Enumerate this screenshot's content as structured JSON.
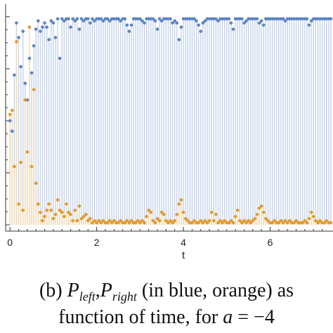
{
  "figure": {
    "caption": {
      "prefix": "(b)",
      "p_symbol": "P",
      "left_sub": "left",
      "right_sub": "right",
      "mid_text": "(in blue, orange) as",
      "line2_text": "function of time, for",
      "a_symbol": "a",
      "a_value": "= −4"
    }
  },
  "chart_data": {
    "type": "scatter",
    "title": "",
    "xlabel": "t",
    "ylabel": "",
    "xlim": [
      -0.1,
      7.45
    ],
    "ylim": [
      -0.02,
      1.06
    ],
    "x_ticks": [
      0,
      2,
      4,
      6
    ],
    "x_tick_labels": [
      "0",
      "2",
      "4",
      "6"
    ],
    "grid": false,
    "drop_lines": true,
    "colors": {
      "blue": "#5b84c4",
      "orange": "#e39a2b",
      "blue_stem": "#c4d3ea",
      "orange_stem": "#f2d9ae",
      "axis": "#333333"
    },
    "series": [
      {
        "name": "P_left",
        "color": "#5b84c4",
        "x": [
          0.0,
          0.05,
          0.1,
          0.15,
          0.2,
          0.25,
          0.3,
          0.35,
          0.4,
          0.45,
          0.5,
          0.55,
          0.6,
          0.65,
          0.7,
          0.75,
          0.8,
          0.85,
          0.9,
          0.95,
          1.0,
          1.05,
          1.1,
          1.15,
          1.2,
          1.25,
          1.3,
          1.35,
          1.4,
          1.45,
          1.5,
          1.55,
          1.6,
          1.65,
          1.7,
          1.75,
          1.8,
          1.85,
          1.9,
          1.95,
          2.0,
          2.05,
          2.1,
          2.15,
          2.2,
          2.25,
          2.3,
          2.35,
          2.4,
          2.45,
          2.5,
          2.55,
          2.6,
          2.65,
          2.7,
          2.75,
          2.8,
          2.85,
          2.9,
          2.95,
          3.0,
          3.05,
          3.1,
          3.15,
          3.2,
          3.25,
          3.3,
          3.35,
          3.4,
          3.45,
          3.5,
          3.55,
          3.6,
          3.65,
          3.7,
          3.75,
          3.8,
          3.85,
          3.9,
          3.95,
          4.0,
          4.05,
          4.1,
          4.15,
          4.2,
          4.25,
          4.3,
          4.35,
          4.4,
          4.45,
          4.5,
          4.55,
          4.6,
          4.65,
          4.7,
          4.75,
          4.8,
          4.85,
          4.9,
          4.95,
          5.0,
          5.05,
          5.1,
          5.15,
          5.2,
          5.25,
          5.3,
          5.35,
          5.4,
          5.45,
          5.5,
          5.55,
          5.6,
          5.65,
          5.7,
          5.75,
          5.8,
          5.85,
          5.9,
          5.95,
          6.0,
          6.05,
          6.1,
          6.15,
          6.2,
          6.25,
          6.3,
          6.35,
          6.4,
          6.45,
          6.5,
          6.55,
          6.6,
          6.65,
          6.7,
          6.75,
          6.8,
          6.85,
          6.9,
          6.95,
          7.0,
          7.05,
          7.1,
          7.15,
          7.2,
          7.25,
          7.3,
          7.35,
          7.4
        ],
        "y": [
          0.5,
          0.45,
          0.72,
          0.97,
          0.9,
          0.76,
          0.93,
          0.68,
          0.6,
          0.8,
          0.73,
          0.86,
          0.94,
          0.98,
          0.93,
          0.95,
          0.97,
          0.95,
          0.89,
          0.98,
          0.97,
          0.9,
          0.99,
          0.8,
          0.99,
          0.98,
          0.99,
          0.99,
          0.95,
          0.99,
          0.98,
          0.99,
          0.94,
          0.99,
          0.98,
          0.99,
          0.99,
          0.97,
          0.99,
          0.98,
          0.99,
          0.99,
          0.99,
          0.98,
          0.99,
          0.99,
          0.98,
          0.99,
          0.99,
          0.99,
          0.99,
          0.98,
          0.99,
          0.99,
          0.96,
          0.93,
          0.96,
          0.99,
          0.99,
          0.99,
          0.99,
          0.98,
          0.97,
          0.99,
          0.99,
          0.99,
          0.99,
          0.98,
          0.94,
          0.99,
          0.98,
          0.99,
          0.99,
          0.99,
          0.99,
          0.97,
          0.98,
          0.97,
          0.89,
          0.95,
          0.99,
          0.99,
          0.99,
          0.99,
          0.99,
          0.99,
          0.98,
          0.96,
          0.93,
          0.97,
          0.98,
          0.99,
          0.99,
          0.99,
          0.99,
          0.99,
          0.98,
          0.99,
          0.99,
          0.99,
          0.99,
          0.99,
          0.97,
          0.94,
          0.99,
          0.99,
          0.99,
          0.99,
          0.97,
          0.98,
          0.99,
          0.99,
          0.99,
          0.99,
          0.99,
          0.97,
          0.98,
          0.96,
          0.99,
          0.99,
          0.99,
          0.99,
          0.99,
          0.99,
          0.99,
          0.99,
          0.99,
          0.98,
          0.99,
          0.99,
          0.99,
          0.99,
          0.99,
          0.99,
          0.99,
          0.99,
          0.99,
          0.99,
          0.96,
          0.98,
          0.99,
          0.99,
          0.99,
          0.99,
          0.99,
          0.99,
          0.99,
          0.99,
          0.99
        ]
      },
      {
        "name": "P_right",
        "color": "#e39a2b",
        "x": [
          0.0,
          0.05,
          0.1,
          0.15,
          0.2,
          0.25,
          0.3,
          0.35,
          0.4,
          0.45,
          0.5,
          0.55,
          0.6,
          0.65,
          0.7,
          0.75,
          0.8,
          0.85,
          0.9,
          0.95,
          1.0,
          1.05,
          1.1,
          1.15,
          1.2,
          1.25,
          1.3,
          1.35,
          1.4,
          1.45,
          1.5,
          1.55,
          1.6,
          1.65,
          1.7,
          1.75,
          1.8,
          1.85,
          1.9,
          1.95,
          2.0,
          2.05,
          2.1,
          2.15,
          2.2,
          2.25,
          2.3,
          2.35,
          2.4,
          2.45,
          2.5,
          2.55,
          2.6,
          2.65,
          2.7,
          2.75,
          2.8,
          2.85,
          2.9,
          2.95,
          3.0,
          3.05,
          3.1,
          3.15,
          3.2,
          3.25,
          3.3,
          3.35,
          3.4,
          3.45,
          3.5,
          3.55,
          3.6,
          3.65,
          3.7,
          3.75,
          3.8,
          3.85,
          3.9,
          3.95,
          4.0,
          4.05,
          4.1,
          4.15,
          4.2,
          4.25,
          4.3,
          4.35,
          4.4,
          4.45,
          4.5,
          4.55,
          4.6,
          4.65,
          4.7,
          4.75,
          4.8,
          4.85,
          4.9,
          4.95,
          5.0,
          5.05,
          5.1,
          5.15,
          5.2,
          5.25,
          5.3,
          5.35,
          5.4,
          5.45,
          5.5,
          5.55,
          5.6,
          5.65,
          5.7,
          5.75,
          5.8,
          5.85,
          5.9,
          5.95,
          6.0,
          6.05,
          6.1,
          6.15,
          6.2,
          6.25,
          6.3,
          6.35,
          6.4,
          6.45,
          6.5,
          6.55,
          6.6,
          6.65,
          6.7,
          6.75,
          6.8,
          6.85,
          6.9,
          6.95,
          7.0,
          7.05,
          7.1,
          7.15,
          7.2,
          7.25,
          7.3,
          7.35,
          7.4
        ],
        "y": [
          0.53,
          0.55,
          0.28,
          0.88,
          0.1,
          0.3,
          0.07,
          0.6,
          0.35,
          0.95,
          0.28,
          0.65,
          0.2,
          0.1,
          0.06,
          0.02,
          0.04,
          0.07,
          0.1,
          0.07,
          0.03,
          0.05,
          0.12,
          0.07,
          0.06,
          0.04,
          0.1,
          0.06,
          0.05,
          0.02,
          0.07,
          0.02,
          0.09,
          0.03,
          0.04,
          0.05,
          0.02,
          0.03,
          0.01,
          0.02,
          0.01,
          0.02,
          0.01,
          0.02,
          0.01,
          0.01,
          0.02,
          0.01,
          0.02,
          0.01,
          0.01,
          0.02,
          0.01,
          0.01,
          0.02,
          0.01,
          0.02,
          0.01,
          0.01,
          0.02,
          0.01,
          0.02,
          0.01,
          0.04,
          0.07,
          0.06,
          0.02,
          0.01,
          0.03,
          0.02,
          0.06,
          0.05,
          0.02,
          0.01,
          0.02,
          0.01,
          0.02,
          0.05,
          0.1,
          0.12,
          0.06,
          0.03,
          0.02,
          0.01,
          0.01,
          0.02,
          0.01,
          0.01,
          0.02,
          0.01,
          0.02,
          0.01,
          0.02,
          0.06,
          0.02,
          0.05,
          0.01,
          0.02,
          0.01,
          0.02,
          0.01,
          0.01,
          0.02,
          0.01,
          0.04,
          0.07,
          0.02,
          0.01,
          0.02,
          0.01,
          0.02,
          0.01,
          0.02,
          0.03,
          0.05,
          0.08,
          0.09,
          0.06,
          0.03,
          0.02,
          0.01,
          0.01,
          0.02,
          0.01,
          0.01,
          0.02,
          0.01,
          0.02,
          0.01,
          0.02,
          0.01,
          0.01,
          0.02,
          0.01,
          0.01,
          0.01,
          0.02,
          0.01,
          0.03,
          0.06,
          0.04,
          0.02,
          0.01,
          0.02,
          0.01,
          0.01,
          0.02,
          0.01,
          0.01
        ]
      }
    ]
  }
}
